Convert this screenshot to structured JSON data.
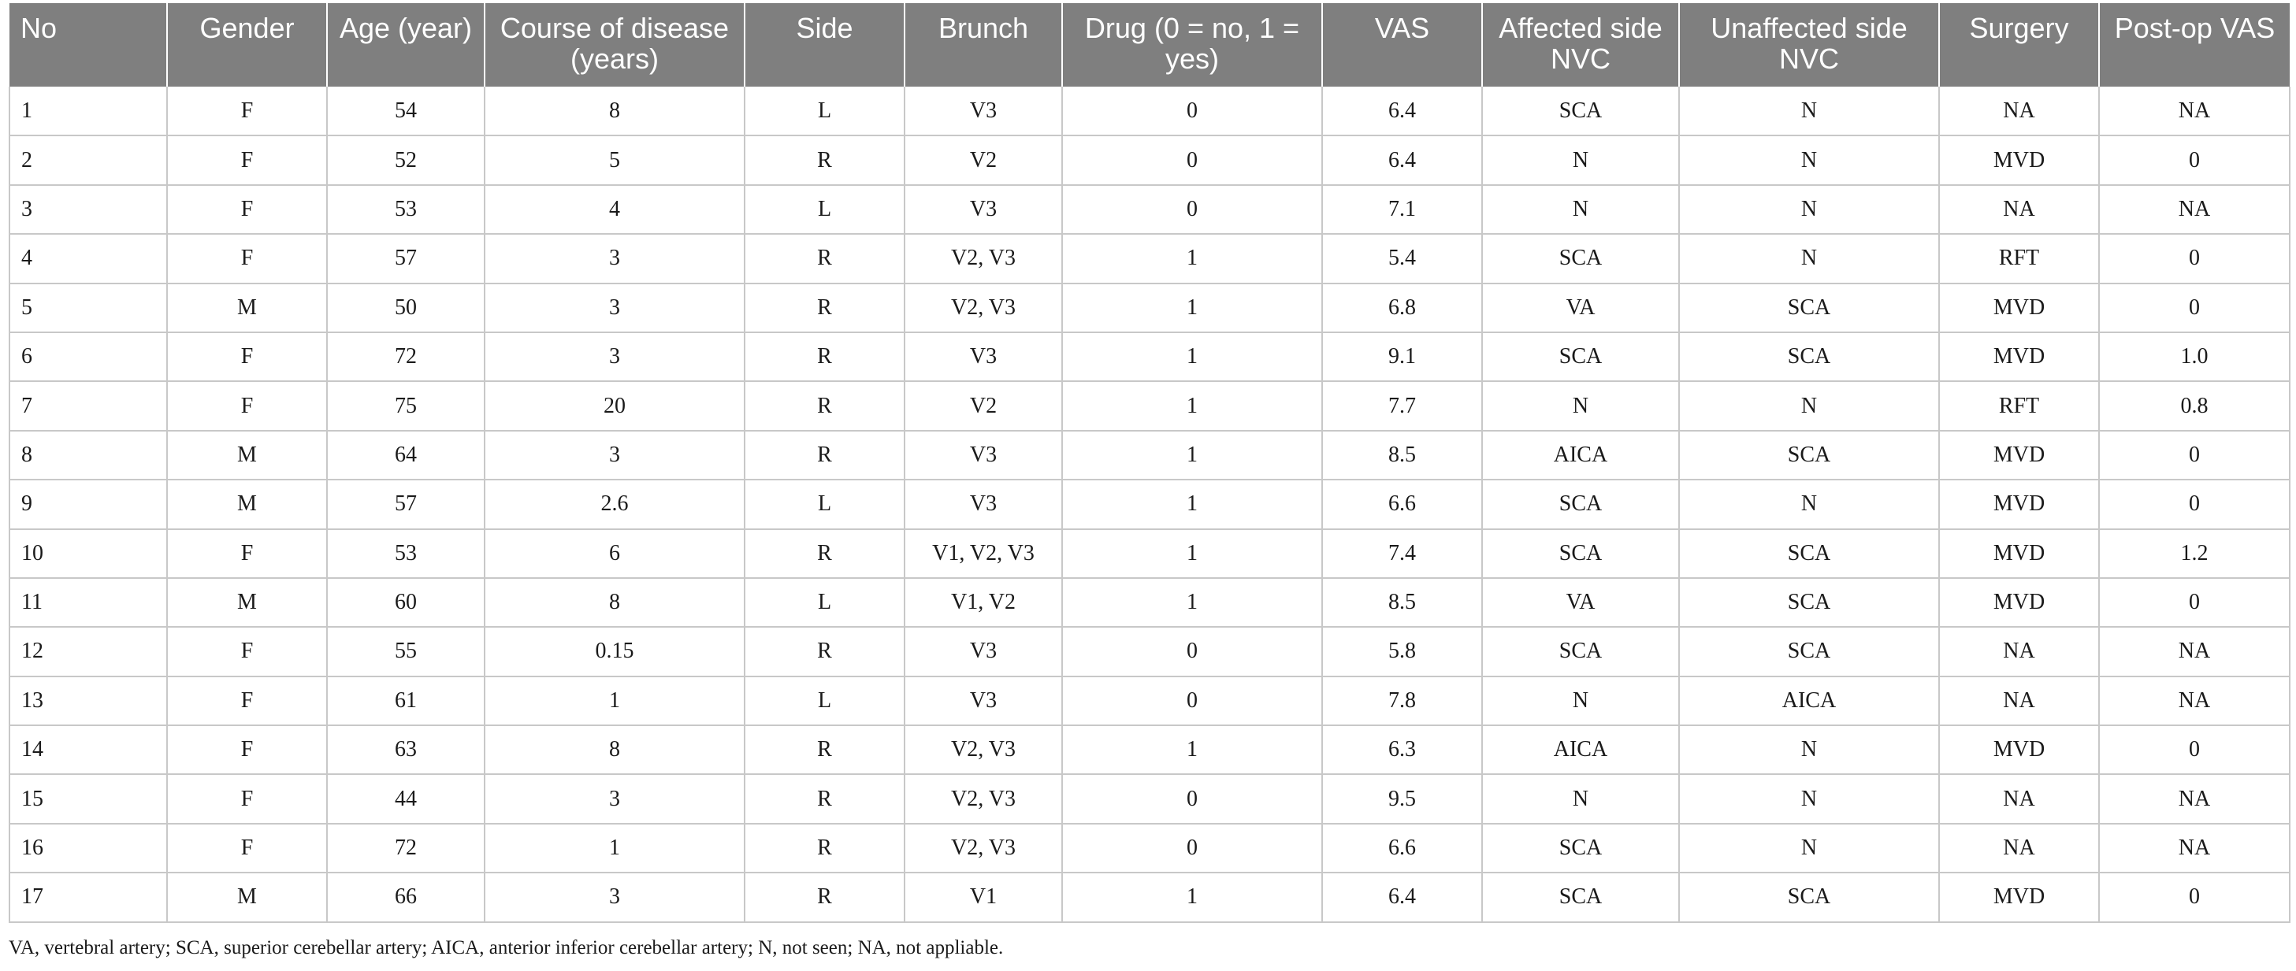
{
  "table": {
    "headers": [
      "No",
      "Gender",
      "Age (year)",
      "Course of disease (years)",
      "Side",
      "Brunch",
      "Drug (0 = no, 1 = yes)",
      "VAS",
      "Affected side NVC",
      "Unaffected side NVC",
      "Surgery",
      "Post-op VAS"
    ],
    "rows": [
      [
        "1",
        "F",
        "54",
        "8",
        "L",
        "V3",
        "0",
        "6.4",
        "SCA",
        "N",
        "NA",
        "NA"
      ],
      [
        "2",
        "F",
        "52",
        "5",
        "R",
        "V2",
        "0",
        "6.4",
        "N",
        "N",
        "MVD",
        "0"
      ],
      [
        "3",
        "F",
        "53",
        "4",
        "L",
        "V3",
        "0",
        "7.1",
        "N",
        "N",
        "NA",
        "NA"
      ],
      [
        "4",
        "F",
        "57",
        "3",
        "R",
        "V2, V3",
        "1",
        "5.4",
        "SCA",
        "N",
        "RFT",
        "0"
      ],
      [
        "5",
        "M",
        "50",
        "3",
        "R",
        "V2, V3",
        "1",
        "6.8",
        "VA",
        "SCA",
        "MVD",
        "0"
      ],
      [
        "6",
        "F",
        "72",
        "3",
        "R",
        "V3",
        "1",
        "9.1",
        "SCA",
        "SCA",
        "MVD",
        "1.0"
      ],
      [
        "7",
        "F",
        "75",
        "20",
        "R",
        "V2",
        "1",
        "7.7",
        "N",
        "N",
        "RFT",
        "0.8"
      ],
      [
        "8",
        "M",
        "64",
        "3",
        "R",
        "V3",
        "1",
        "8.5",
        "AICA",
        "SCA",
        "MVD",
        "0"
      ],
      [
        "9",
        "M",
        "57",
        "2.6",
        "L",
        "V3",
        "1",
        "6.6",
        "SCA",
        "N",
        "MVD",
        "0"
      ],
      [
        "10",
        "F",
        "53",
        "6",
        "R",
        "V1, V2, V3",
        "1",
        "7.4",
        "SCA",
        "SCA",
        "MVD",
        "1.2"
      ],
      [
        "11",
        "M",
        "60",
        "8",
        "L",
        "V1, V2",
        "1",
        "8.5",
        "VA",
        "SCA",
        "MVD",
        "0"
      ],
      [
        "12",
        "F",
        "55",
        "0.15",
        "R",
        "V3",
        "0",
        "5.8",
        "SCA",
        "SCA",
        "NA",
        "NA"
      ],
      [
        "13",
        "F",
        "61",
        "1",
        "L",
        "V3",
        "0",
        "7.8",
        "N",
        "AICA",
        "NA",
        "NA"
      ],
      [
        "14",
        "F",
        "63",
        "8",
        "R",
        "V2, V3",
        "1",
        "6.3",
        "AICA",
        "N",
        "MVD",
        "0"
      ],
      [
        "15",
        "F",
        "44",
        "3",
        "R",
        "V2, V3",
        "0",
        "9.5",
        "N",
        "N",
        "NA",
        "NA"
      ],
      [
        "16",
        "F",
        "72",
        "1",
        "R",
        "V2, V3",
        "0",
        "6.6",
        "SCA",
        "N",
        "NA",
        "NA"
      ],
      [
        "17",
        "M",
        "66",
        "3",
        "R",
        "V1",
        "1",
        "6.4",
        "SCA",
        "SCA",
        "MVD",
        "0"
      ]
    ]
  },
  "footnote": "VA, vertebral artery; SCA, superior cerebellar artery; AICA, anterior inferior cerebellar artery; N, not seen; NA, not appliable.",
  "colors": {
    "header_bg": "#7f7f7f",
    "header_text": "#ffffff",
    "grid": "#c8c8c8"
  }
}
